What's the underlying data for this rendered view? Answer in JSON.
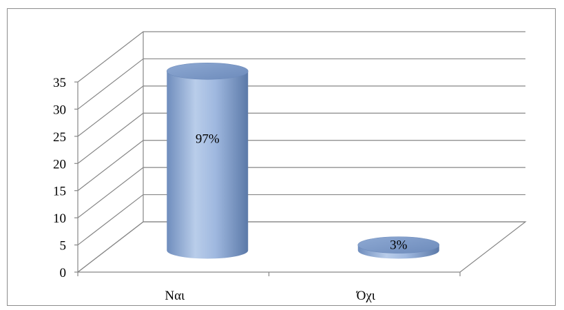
{
  "chart_data": {
    "type": "bar",
    "style": "3d-cylinder",
    "categories": [
      "Ναι",
      "Όχι"
    ],
    "series": [
      {
        "values": [
          33,
          1
        ],
        "data_labels": [
          "97%",
          "3%"
        ]
      }
    ],
    "ylim": [
      0,
      35
    ],
    "y_ticks": [
      0,
      5,
      10,
      15,
      20,
      25,
      30,
      35
    ],
    "y_tick_labels": [
      "0",
      "5",
      "10",
      "15",
      "20",
      "25",
      "30",
      "35"
    ],
    "title": "",
    "xlabel": "",
    "ylabel": "",
    "grid": true,
    "legend": "none",
    "colors": {
      "bar_light": "#b9cdea",
      "bar_mid": "#8fabd6",
      "bar_dark": "#5b79a8",
      "bar_top": "#7f9cc8",
      "grid": "#868686"
    }
  }
}
